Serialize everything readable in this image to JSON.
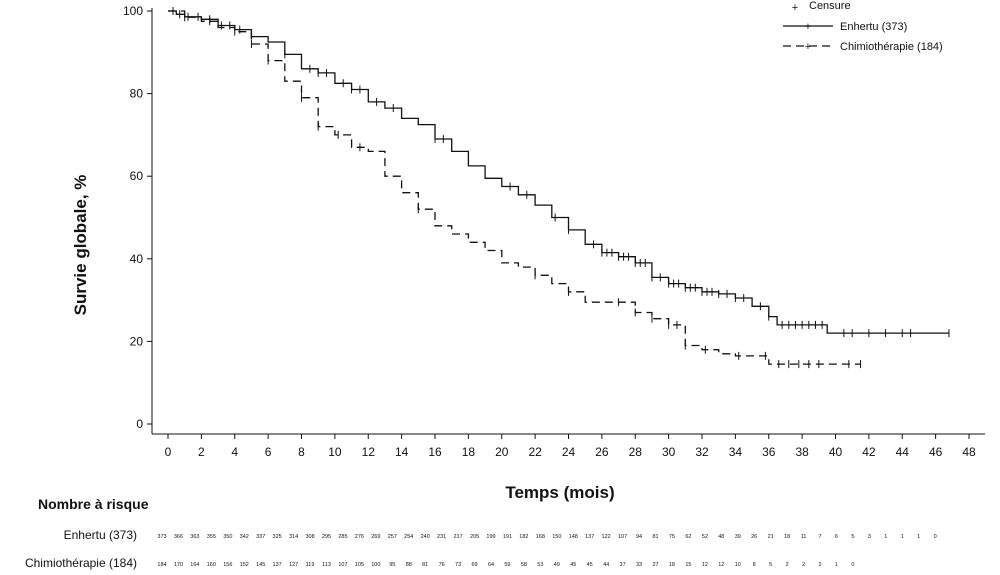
{
  "chart_data": {
    "type": "line",
    "xlabel": "Temps (mois)",
    "ylabel": "Survie globale, %",
    "xlim": [
      0,
      48
    ],
    "ylim": [
      0,
      100
    ],
    "x_ticks": [
      0,
      2,
      4,
      6,
      8,
      10,
      12,
      14,
      16,
      18,
      20,
      22,
      24,
      26,
      28,
      30,
      32,
      34,
      36,
      38,
      40,
      42,
      44,
      46,
      48
    ],
    "y_ticks": [
      0,
      20,
      40,
      60,
      80,
      100
    ],
    "grid": false,
    "legend_position": "top-right",
    "legend_censor_label": "Censure",
    "series": [
      {
        "name": "Enhertu (373)",
        "style": "solid",
        "color": "#111111",
        "points": [
          [
            0,
            100
          ],
          [
            0.5,
            99.2
          ],
          [
            1,
            98.6
          ],
          [
            2,
            98
          ],
          [
            3,
            96.5
          ],
          [
            4,
            95.5
          ],
          [
            5,
            93.8
          ],
          [
            6,
            92.5
          ],
          [
            7,
            89.5
          ],
          [
            8,
            86
          ],
          [
            9,
            85
          ],
          [
            10,
            82.5
          ],
          [
            11,
            81
          ],
          [
            12,
            78
          ],
          [
            13,
            76.5
          ],
          [
            14,
            74
          ],
          [
            15,
            72.5
          ],
          [
            16,
            69
          ],
          [
            17,
            66
          ],
          [
            18,
            62.5
          ],
          [
            19,
            59.5
          ],
          [
            20,
            57.5
          ],
          [
            21,
            55.5
          ],
          [
            22,
            53
          ],
          [
            23,
            50
          ],
          [
            24,
            47
          ],
          [
            25,
            43.5
          ],
          [
            26,
            41.5
          ],
          [
            27,
            40.5
          ],
          [
            28,
            39
          ],
          [
            29,
            35.5
          ],
          [
            30,
            34
          ],
          [
            31,
            33
          ],
          [
            32,
            32
          ],
          [
            33,
            31.5
          ],
          [
            34,
            30.5
          ],
          [
            35,
            28.5
          ],
          [
            36,
            26
          ],
          [
            36.5,
            24
          ],
          [
            38,
            24
          ],
          [
            39,
            24
          ],
          [
            39.5,
            22
          ],
          [
            42,
            22
          ],
          [
            46.8,
            22
          ]
        ],
        "censor_x": [
          0.3,
          0.7,
          1.2,
          1.8,
          2.5,
          3.2,
          3.7,
          4.3,
          7,
          8.5,
          9,
          9.5,
          10.5,
          11,
          11.5,
          12.5,
          13.5,
          16,
          16.5,
          20.5,
          21.5,
          23.2,
          24,
          25.5,
          26,
          26.3,
          26.6,
          27,
          27.3,
          27.6,
          28,
          28.3,
          28.6,
          29,
          29.5,
          30,
          30.3,
          30.6,
          31,
          31.3,
          31.6,
          32,
          32.3,
          32.6,
          33,
          33.5,
          34,
          34.5,
          35.5,
          36,
          36.8,
          37.2,
          37.6,
          38,
          38.4,
          38.8,
          39.2,
          40.5,
          41,
          42,
          43,
          44,
          44.5,
          46.8
        ]
      },
      {
        "name": "Chimiothérapie (184)",
        "style": "dashed",
        "color": "#111111",
        "points": [
          [
            0,
            100
          ],
          [
            1,
            98.5
          ],
          [
            2,
            97.5
          ],
          [
            3,
            96
          ],
          [
            4,
            95
          ],
          [
            5,
            92
          ],
          [
            6,
            88
          ],
          [
            7,
            83
          ],
          [
            8,
            79
          ],
          [
            9,
            72
          ],
          [
            10,
            70
          ],
          [
            11,
            67
          ],
          [
            12,
            66
          ],
          [
            13,
            60
          ],
          [
            14,
            56
          ],
          [
            15,
            52
          ],
          [
            16,
            48
          ],
          [
            17,
            46
          ],
          [
            18,
            44
          ],
          [
            19,
            42
          ],
          [
            20,
            39
          ],
          [
            21,
            38
          ],
          [
            22,
            36
          ],
          [
            23,
            34
          ],
          [
            24,
            32
          ],
          [
            25,
            29.5
          ],
          [
            27,
            29.5
          ],
          [
            28,
            27
          ],
          [
            29,
            25.5
          ],
          [
            30,
            24
          ],
          [
            31,
            19
          ],
          [
            32,
            18
          ],
          [
            33,
            17
          ],
          [
            34,
            16.5
          ],
          [
            35,
            16.5
          ],
          [
            36,
            14.5
          ],
          [
            41.5,
            14.5
          ]
        ],
        "censor_x": [
          1,
          2.5,
          4,
          5,
          6,
          8,
          9,
          10.2,
          11.5,
          15,
          22,
          24,
          27,
          28,
          29,
          30,
          30.5,
          31,
          32.2,
          34.2,
          35.8,
          36.6,
          37.2,
          37.8,
          38.4,
          39,
          40.8,
          41.5
        ]
      }
    ],
    "risk_table": {
      "title": "Nombre à risque",
      "rows": [
        {
          "label": "Enhertu (373)",
          "values": [
            "373",
            "366",
            "363",
            "355",
            "350",
            "342",
            "337",
            "325",
            "314",
            "308",
            "295",
            "285",
            "276",
            "269",
            "257",
            "254",
            "240",
            "231",
            "217",
            "205",
            "199",
            "191",
            "182",
            "168",
            "150",
            "148",
            "137",
            "122",
            "107",
            "94",
            "81",
            "75",
            "62",
            "52",
            "48",
            "39",
            "26",
            "21",
            "18",
            "11",
            "7",
            "6",
            "5",
            "3",
            "1",
            "1",
            "1",
            "0"
          ]
        },
        {
          "label": "Chimiothérapie (184)",
          "values": [
            "184",
            "170",
            "164",
            "160",
            "156",
            "152",
            "145",
            "137",
            "127",
            "119",
            "113",
            "107",
            "105",
            "100",
            "95",
            "88",
            "81",
            "76",
            "73",
            "69",
            "64",
            "59",
            "58",
            "53",
            "49",
            "45",
            "45",
            "44",
            "37",
            "33",
            "27",
            "18",
            "15",
            "12",
            "12",
            "10",
            "8",
            "5",
            "2",
            "2",
            "2",
            "1",
            "0"
          ]
        }
      ]
    }
  }
}
